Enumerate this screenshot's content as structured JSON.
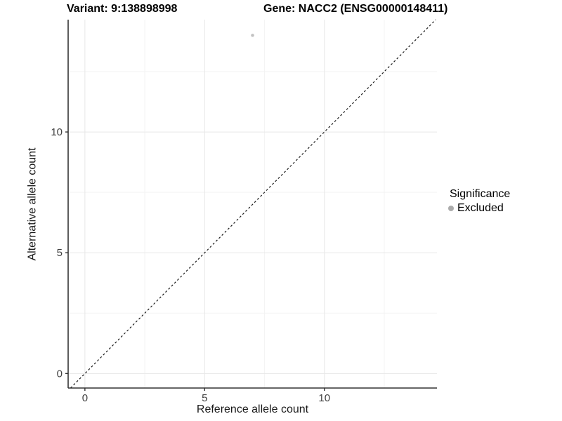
{
  "titles": {
    "variant": "Variant: 9:138898998",
    "gene": "Gene: NACC2 (ENSG00000148411)"
  },
  "chart_data": {
    "type": "scatter",
    "xlabel": "Reference allele count",
    "ylabel": "Alternative allele count",
    "xlim": [
      -0.7,
      14.7
    ],
    "ylim": [
      -0.6,
      14.65
    ],
    "x_ticks": [
      0,
      5,
      10
    ],
    "y_ticks": [
      0,
      5,
      10
    ],
    "x_minor_breaks": [
      2.5,
      7.5,
      12.5
    ],
    "y_minor_breaks": [
      2.5,
      7.5,
      12.5
    ],
    "points": [
      {
        "x": 7,
        "y": 14,
        "series": "Excluded"
      }
    ],
    "identity_line": {
      "type": "abline",
      "slope": 1,
      "intercept": 0,
      "style": "dashed"
    },
    "legend": {
      "position": "right",
      "title": "Significance",
      "entries": [
        {
          "label": "Excluded",
          "color": "#ababab"
        }
      ]
    },
    "grid": "major+minor",
    "colors": {
      "excluded_point": "#c2c2c2",
      "axis_line": "#333333",
      "tick_label": "#404040",
      "grid_major": "#e7e7e7",
      "grid_minor": "#f3f3f3",
      "dashed_line": "#1a1a1a",
      "background": "#ffffff"
    }
  }
}
